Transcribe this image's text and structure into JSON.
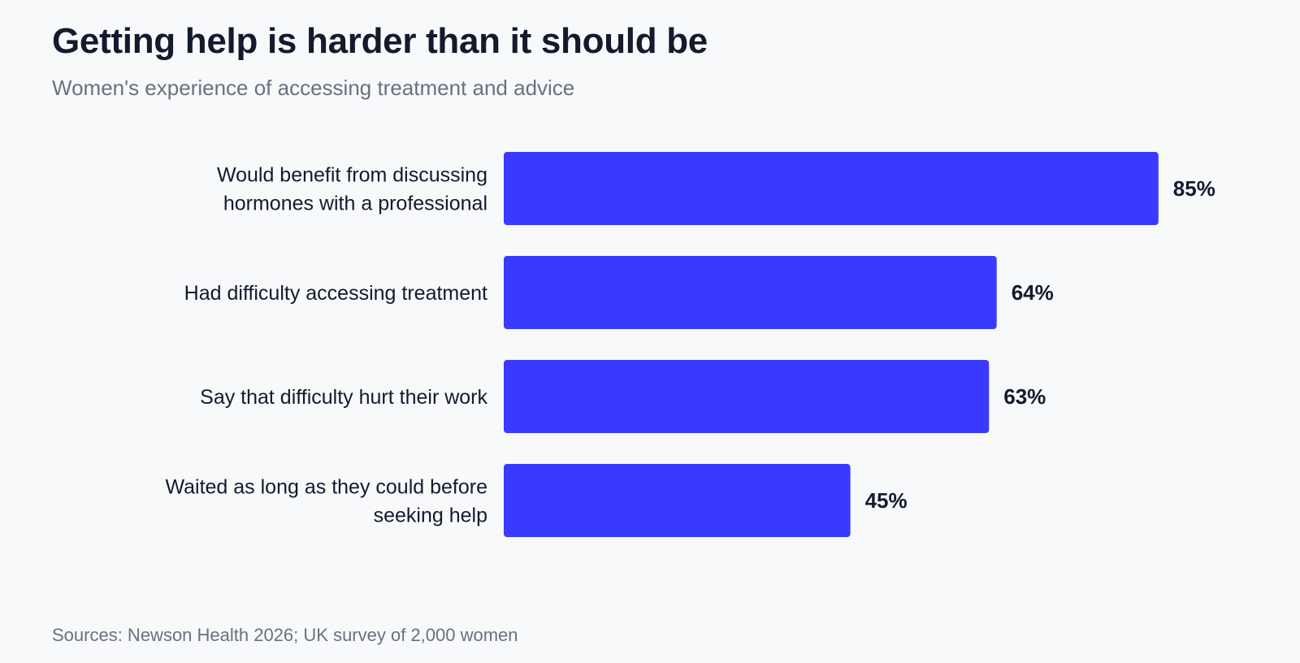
{
  "title": "Getting help is harder than it should be",
  "subtitle": "Women's experience of accessing treatment and advice",
  "source": "Sources: Newson Health 2026; UK survey of 2,000 women",
  "colors": {
    "bar": "#3a3aff",
    "text": "#141a2e",
    "muted": "#6b7080",
    "background": "#f8f9fb"
  },
  "chart_data": {
    "type": "bar",
    "orientation": "horizontal",
    "categories": [
      [
        "Would benefit from discussing",
        "hormones with a professional"
      ],
      [
        "Had difficulty accessing treatment"
      ],
      [
        "Say that difficulty hurt their work"
      ],
      [
        "Waited as long as they could before",
        "seeking help"
      ]
    ],
    "values": [
      85,
      64,
      63,
      45
    ],
    "value_labels": [
      "85%",
      "64%",
      "63%",
      "45%"
    ],
    "xlim": [
      0,
      100
    ],
    "grid": false,
    "legend": "none"
  }
}
